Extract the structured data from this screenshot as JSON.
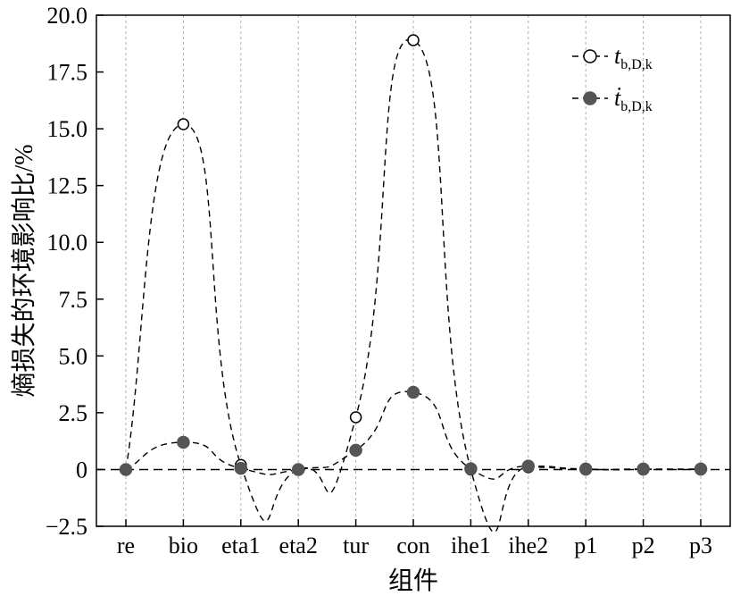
{
  "chart_data": {
    "type": "line",
    "categories": [
      "re",
      "bio",
      "eta1",
      "eta2",
      "tur",
      "con",
      "ihe1",
      "ihe2",
      "p1",
      "p2",
      "p3"
    ],
    "series": [
      {
        "name_base": "t",
        "name_sub": "b,D,k",
        "marker": "open-circle",
        "line": "dashed",
        "values": [
          0,
          15.2,
          0.2,
          0,
          2.3,
          18.9,
          0,
          0.1,
          0,
          0,
          0
        ]
      },
      {
        "name_base": "ṫ",
        "name_sub": "b,D,k",
        "marker": "filled-circle",
        "line": "dashed",
        "values": [
          0,
          1.2,
          0.05,
          0,
          0.85,
          3.4,
          0.03,
          0.15,
          0.02,
          0.02,
          0.02
        ]
      }
    ],
    "xlabel": "组件",
    "ylabel": "熵损失的环境影响比/%",
    "ylim": [
      -2.5,
      20
    ],
    "yticks": [
      -2.5,
      0,
      2.5,
      5.0,
      7.5,
      10.0,
      12.5,
      15.0,
      17.5,
      20.0
    ],
    "ytick_labels": [
      "−2.5",
      "0",
      "2.5",
      "5.0",
      "7.5",
      "10.0",
      "12.5",
      "15.0",
      "17.5",
      "20.0"
    ],
    "grid": "vertical-dotted",
    "zero_line": true,
    "legend": "top-right",
    "colors": {
      "marker_fill": "#555555",
      "line": "#000000",
      "grid": "#b0b0b0"
    }
  }
}
